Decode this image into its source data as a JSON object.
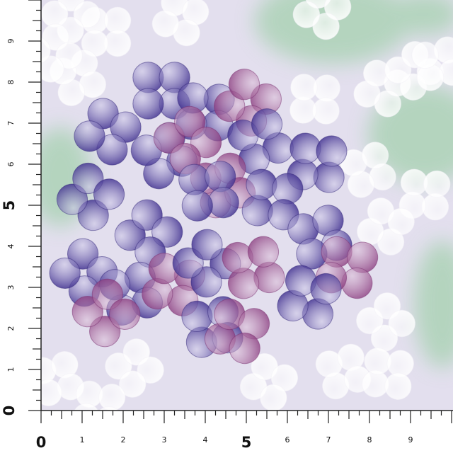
{
  "ruler": {
    "bottom_labels": [
      "0",
      "1",
      "2",
      "3",
      "4",
      "5",
      "6",
      "7",
      "8",
      "9"
    ],
    "left_labels": [
      "0",
      "1",
      "2",
      "3",
      "4",
      "5",
      "6",
      "7",
      "8",
      "9"
    ]
  }
}
